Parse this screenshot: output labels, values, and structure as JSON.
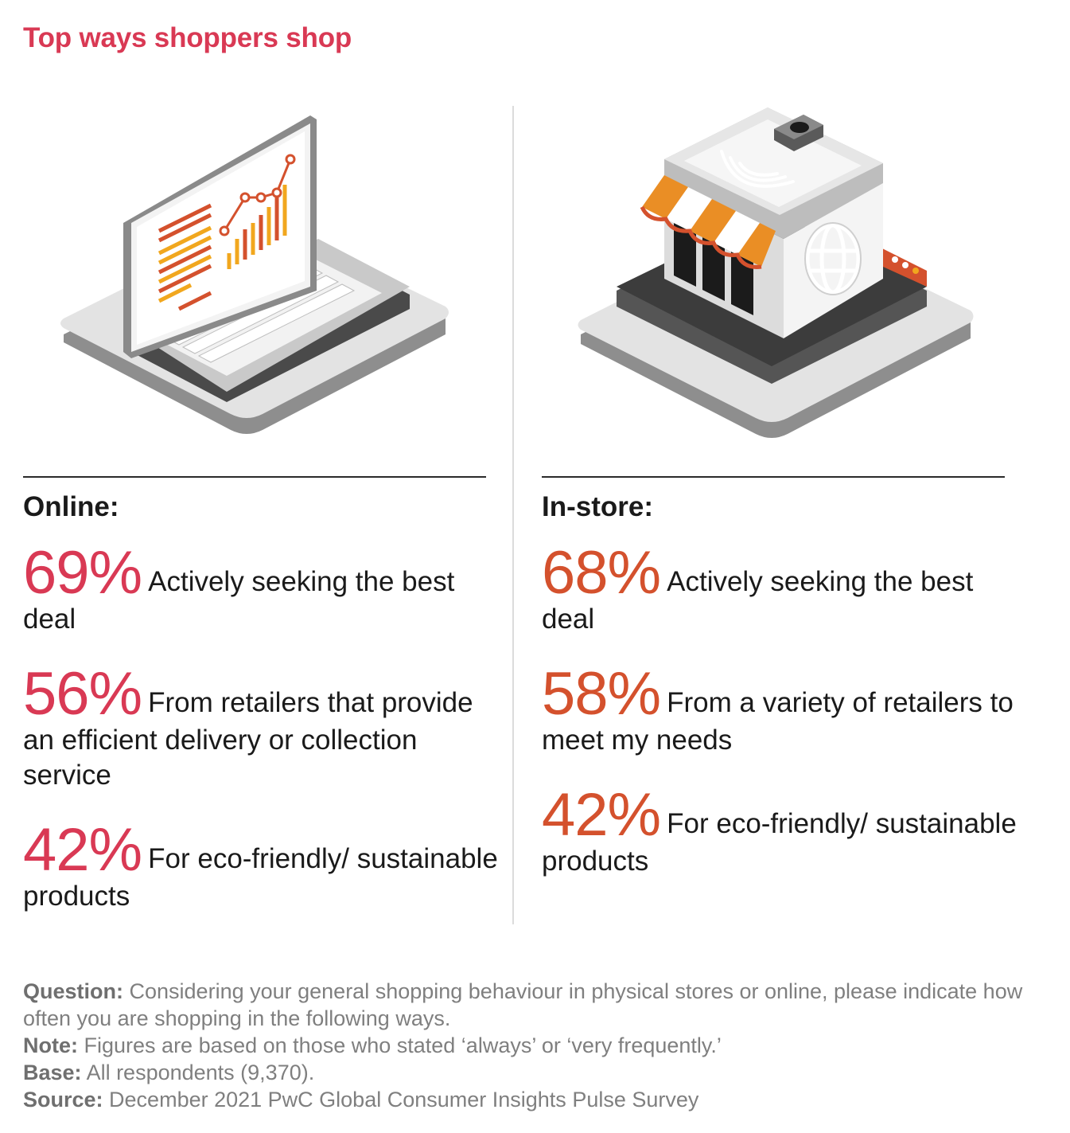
{
  "title": "Top ways shoppers shop",
  "colors": {
    "title": "#d93954",
    "online_accent": "#d93954",
    "instore_accent": "#d4512d",
    "amber": "#f1a71e",
    "orange": "#ea8e25"
  },
  "online": {
    "heading": "Online:",
    "stats": [
      {
        "value": "69%",
        "text": "Actively seeking the best deal"
      },
      {
        "value": "56%",
        "text": "From retailers that provide an efficient delivery or collection service"
      },
      {
        "value": "42%",
        "text": "For eco-friendly/ sustainable products"
      }
    ]
  },
  "instore": {
    "heading": "In-store:",
    "stats": [
      {
        "value": "68%",
        "text": "Actively seeking the best deal"
      },
      {
        "value": "58%",
        "text": "From a variety of retailers to meet my needs"
      },
      {
        "value": "42%",
        "text": "For eco-friendly/ sustainable products"
      }
    ]
  },
  "footnotes": [
    {
      "label": "Question:",
      "text": "Considering your general shopping behaviour in physical stores or online, please indicate how often you are shopping in the following ways."
    },
    {
      "label": "Note:",
      "text": "Figures are based on those who stated ‘always’ or ‘very frequently.’"
    },
    {
      "label": "Base:",
      "text": "All respondents (9,370)."
    },
    {
      "label": "Source:",
      "text": "December 2021 PwC Global Consumer Insights Pulse Survey"
    }
  ]
}
